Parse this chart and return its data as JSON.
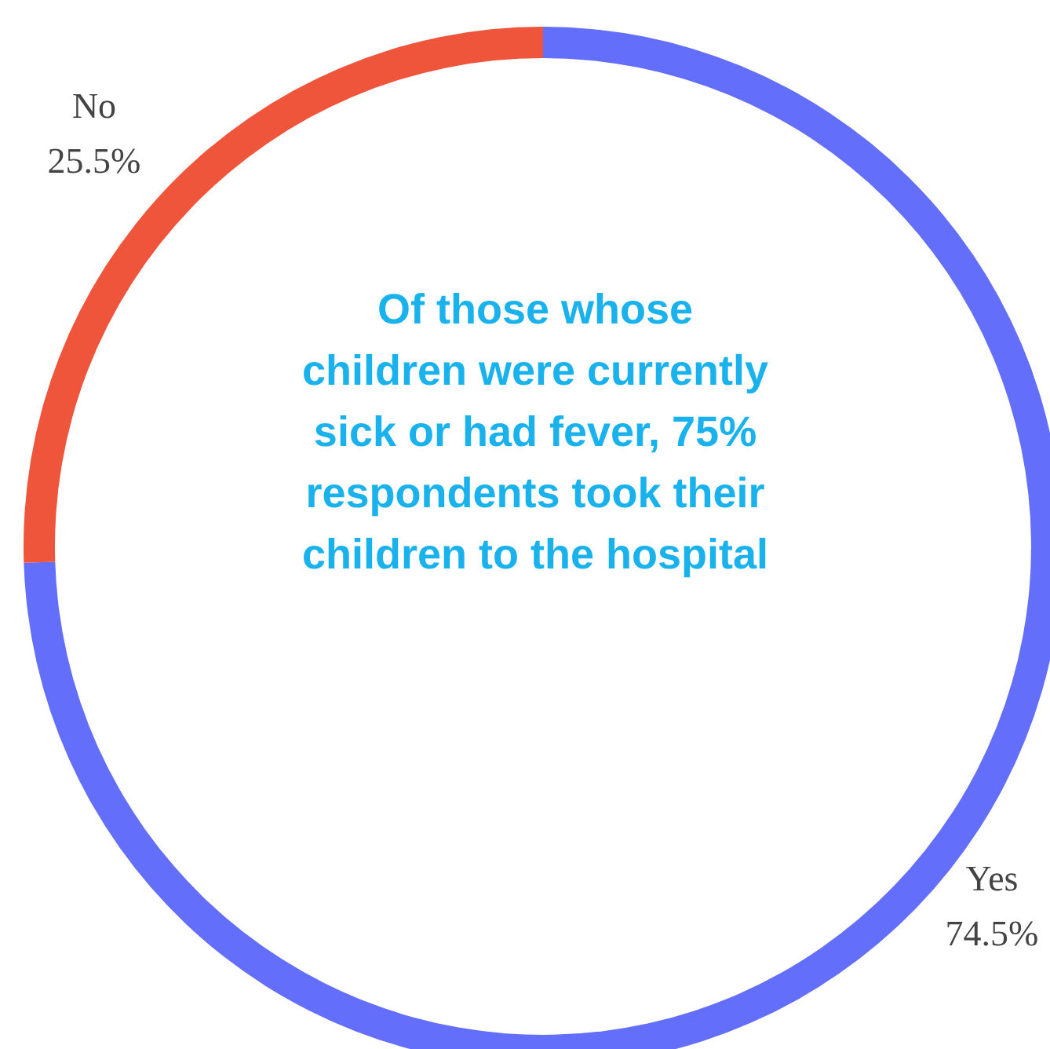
{
  "chart_data": {
    "type": "donut",
    "categories": [
      "Yes",
      "No"
    ],
    "values": [
      74.5,
      25.5
    ],
    "colors": [
      "#636efa",
      "#ef553b"
    ],
    "value_labels": [
      "74.5%",
      "25.5%"
    ],
    "annotations": [
      "Of those whose children were currently sick or had fever, 75% respondents took their children to the hospital"
    ],
    "legend": false
  }
}
